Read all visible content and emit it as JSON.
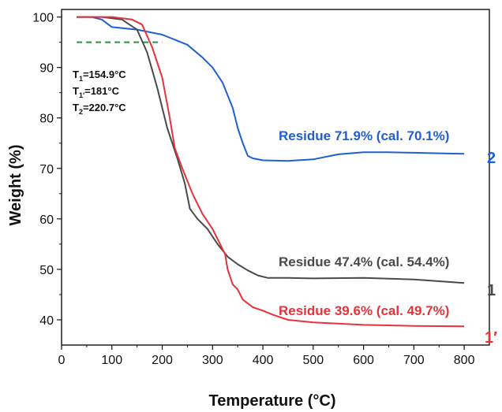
{
  "chart_data": {
    "type": "line",
    "xlabel": "Temperature (°C)",
    "ylabel": "Weight (%)",
    "xlim": [
      0,
      850
    ],
    "ylim": [
      35,
      101.5
    ],
    "xticks": [
      0,
      100,
      200,
      300,
      400,
      500,
      600,
      700,
      800
    ],
    "yticks": [
      40,
      50,
      60,
      70,
      80,
      90,
      100
    ],
    "grid": false,
    "series": [
      {
        "name": "2",
        "color": "#1f5fd1",
        "points": [
          [
            30,
            100
          ],
          [
            60,
            100
          ],
          [
            80,
            99.5
          ],
          [
            100,
            98
          ],
          [
            150,
            97.5
          ],
          [
            200,
            96.5
          ],
          [
            250,
            94.5
          ],
          [
            280,
            92
          ],
          [
            300,
            90
          ],
          [
            320,
            87
          ],
          [
            340,
            82
          ],
          [
            350,
            78
          ],
          [
            360,
            75
          ],
          [
            370,
            72.5
          ],
          [
            380,
            72
          ],
          [
            400,
            71.6
          ],
          [
            450,
            71.5
          ],
          [
            500,
            71.8
          ],
          [
            550,
            72.8
          ],
          [
            600,
            73.2
          ],
          [
            650,
            73.2
          ],
          [
            700,
            73.1
          ],
          [
            750,
            73
          ],
          [
            800,
            72.9
          ]
        ]
      },
      {
        "name": "1",
        "color": "#4a4a4a",
        "points": [
          [
            30,
            100
          ],
          [
            80,
            100
          ],
          [
            120,
            99.5
          ],
          [
            150,
            97.5
          ],
          [
            170,
            93
          ],
          [
            190,
            86
          ],
          [
            210,
            78
          ],
          [
            230,
            72
          ],
          [
            245,
            67
          ],
          [
            255,
            62
          ],
          [
            270,
            60
          ],
          [
            290,
            58
          ],
          [
            310,
            55
          ],
          [
            330,
            52.5
          ],
          [
            350,
            51
          ],
          [
            370,
            49.8
          ],
          [
            390,
            48.8
          ],
          [
            410,
            48.3
          ],
          [
            450,
            48.3
          ],
          [
            500,
            48.2
          ],
          [
            600,
            48.3
          ],
          [
            700,
            48
          ],
          [
            800,
            47.3
          ]
        ]
      },
      {
        "name": "1′",
        "color": "#e8323a",
        "points": [
          [
            30,
            100
          ],
          [
            100,
            100
          ],
          [
            140,
            99.5
          ],
          [
            160,
            98.5
          ],
          [
            180,
            94
          ],
          [
            200,
            88
          ],
          [
            215,
            80
          ],
          [
            225,
            74
          ],
          [
            240,
            70
          ],
          [
            260,
            65
          ],
          [
            280,
            61
          ],
          [
            300,
            58
          ],
          [
            315,
            55
          ],
          [
            325,
            53
          ],
          [
            330,
            50
          ],
          [
            340,
            47
          ],
          [
            350,
            46
          ],
          [
            360,
            44
          ],
          [
            380,
            42.5
          ],
          [
            400,
            41.8
          ],
          [
            420,
            41
          ],
          [
            450,
            40
          ],
          [
            500,
            39.5
          ],
          [
            600,
            39
          ],
          [
            700,
            38.8
          ],
          [
            800,
            38.7
          ]
        ]
      }
    ],
    "reference_line": {
      "y": 95,
      "color": "#1a9a3a",
      "style": "dashed",
      "x_range": [
        30,
        200
      ]
    },
    "annotations": {
      "td_lines": [
        {
          "sub": "1",
          "value": "=154.9°C"
        },
        {
          "sub": "1'",
          "value": "=181°C"
        },
        {
          "sub": "2",
          "value": "=220.7°C"
        }
      ],
      "residue_2": "Residue 71.9% (cal. 70.1%)",
      "residue_1": "Residue 47.4% (cal. 54.4%)",
      "residue_1p": "Residue 39.6% (cal. 49.7%)"
    },
    "series_labels": {
      "label_2": "2",
      "label_1": "1",
      "label_1p": "1′"
    }
  }
}
